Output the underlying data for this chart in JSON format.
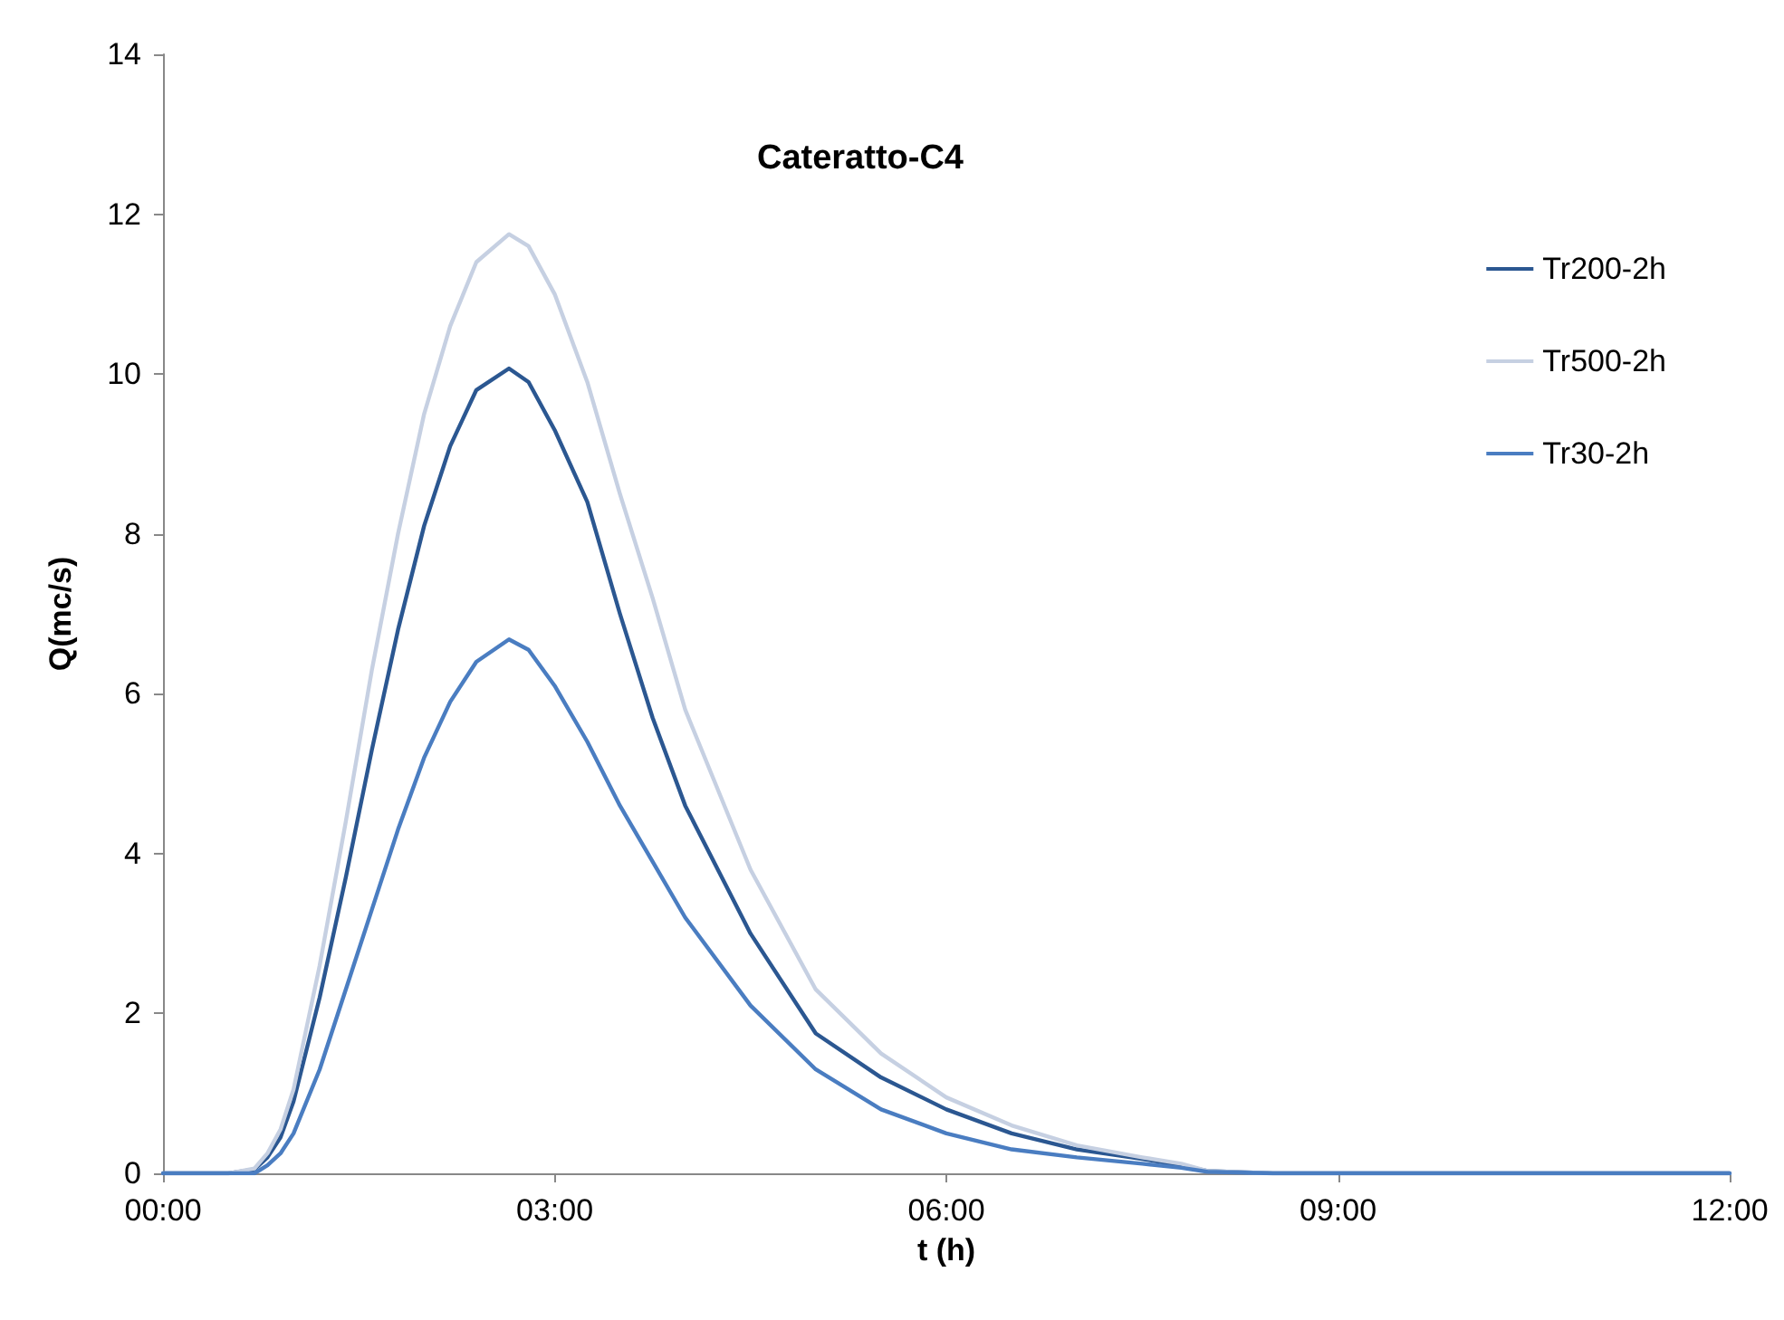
{
  "chart_data": {
    "type": "line",
    "title": "Cateratto-C4",
    "xlabel": "t (h)",
    "ylabel": "Q(mc/s)",
    "x": [
      0,
      0.5,
      0.7,
      0.8,
      0.9,
      1.0,
      1.2,
      1.4,
      1.6,
      1.8,
      2.0,
      2.2,
      2.4,
      2.65,
      2.8,
      3.0,
      3.25,
      3.5,
      3.75,
      4.0,
      4.5,
      5.0,
      5.5,
      6.0,
      6.5,
      7.0,
      7.5,
      7.8,
      8.0,
      8.5,
      9,
      10,
      11,
      12
    ],
    "series": [
      {
        "name": "Tr200-2h",
        "color": "#2b5791",
        "values": [
          0,
          0,
          0.05,
          0.2,
          0.45,
          0.9,
          2.2,
          3.7,
          5.3,
          6.8,
          8.1,
          9.1,
          9.8,
          10.07,
          9.9,
          9.3,
          8.4,
          7.0,
          5.7,
          4.6,
          3.0,
          1.75,
          1.2,
          0.8,
          0.5,
          0.3,
          0.18,
          0.1,
          0.03,
          0,
          0,
          0,
          0,
          0
        ]
      },
      {
        "name": "Tr500-2h",
        "color": "#c6d0e2",
        "values": [
          0,
          0,
          0.06,
          0.25,
          0.55,
          1.05,
          2.6,
          4.4,
          6.3,
          8.0,
          9.5,
          10.6,
          11.4,
          11.75,
          11.6,
          11.0,
          9.9,
          8.5,
          7.2,
          5.8,
          3.8,
          2.3,
          1.5,
          0.95,
          0.6,
          0.35,
          0.2,
          0.12,
          0.03,
          0,
          0,
          0,
          0,
          0
        ]
      },
      {
        "name": "Tr30-2h",
        "color": "#4a7dc1",
        "values": [
          0,
          0,
          0,
          0.1,
          0.25,
          0.5,
          1.3,
          2.3,
          3.3,
          4.3,
          5.2,
          5.9,
          6.4,
          6.68,
          6.55,
          6.1,
          5.4,
          4.6,
          3.9,
          3.2,
          2.1,
          1.3,
          0.8,
          0.5,
          0.3,
          0.2,
          0.12,
          0.07,
          0.02,
          0,
          0,
          0,
          0,
          0
        ]
      }
    ],
    "xlim": [
      0,
      12
    ],
    "xticks": [
      {
        "value": 0,
        "label": "00:00"
      },
      {
        "value": 3,
        "label": "03:00"
      },
      {
        "value": 6,
        "label": "06:00"
      },
      {
        "value": 9,
        "label": "09:00"
      },
      {
        "value": 12,
        "label": "12:00"
      }
    ],
    "ylim": [
      0,
      14
    ],
    "yticks": [
      0,
      2,
      4,
      6,
      8,
      10,
      12,
      14
    ],
    "grid": false,
    "legend": "top right",
    "marker": "none",
    "line_style": "solid"
  }
}
